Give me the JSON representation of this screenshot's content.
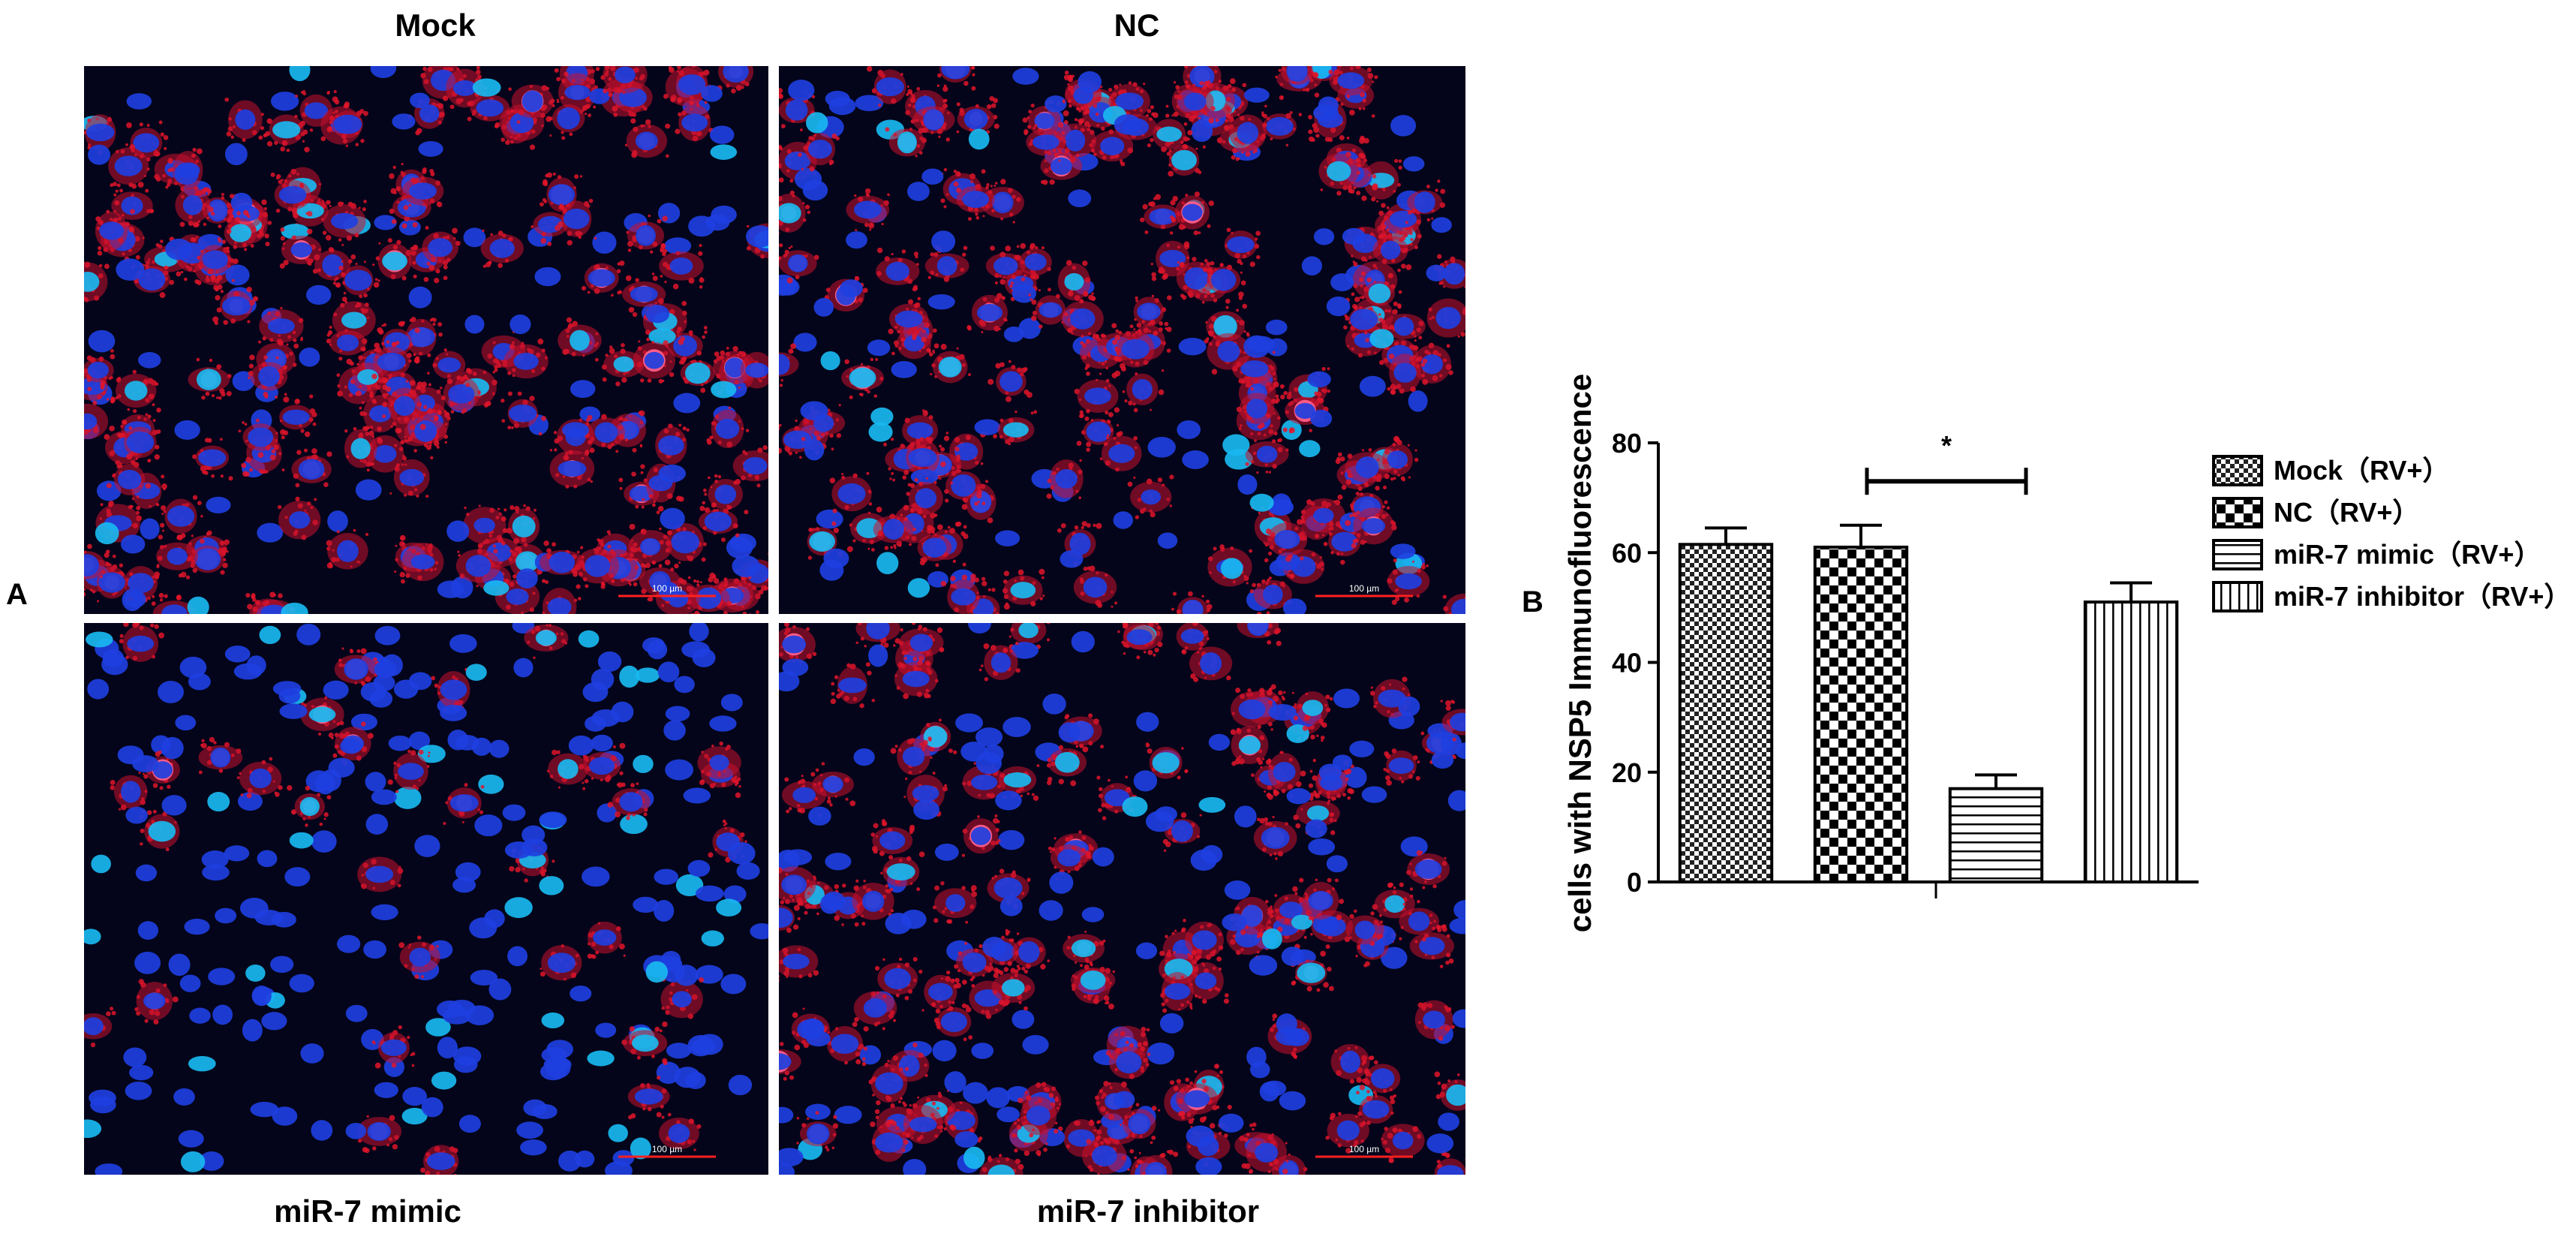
{
  "panels": {
    "a_label": "A",
    "b_label": "B",
    "image_titles": [
      "Mock",
      "NC",
      "miR-7 mimic",
      "miR-7 inhibitor"
    ],
    "scale_bar_text": "100 µm"
  },
  "chart_data": {
    "type": "bar",
    "categories": [
      "Mock（RV+）",
      "NC（RV+）",
      "miR-7 mimic（RV+）",
      "miR-7 inhibitor（RV+）"
    ],
    "series": [
      {
        "name": "",
        "values": [
          61.5,
          61,
          17,
          51
        ],
        "errors": [
          3,
          4,
          2.5,
          3.5
        ]
      }
    ],
    "ylabel": "cells with NSP5 Immunofluorescence",
    "xlabel": "",
    "ylim": [
      0,
      80
    ],
    "yticks": [
      0,
      20,
      40,
      60,
      80
    ],
    "significance": {
      "between": [
        "NC（RV+）",
        "miR-7 mimic（RV+）"
      ],
      "label": "*"
    },
    "legend": {
      "position": "right",
      "entries": [
        "Mock（RV+）",
        "NC（RV+）",
        "miR-7 mimic（RV+）",
        "miR-7 inhibitor（RV+）"
      ]
    },
    "patterns": [
      "fine-check",
      "checkerboard",
      "horizontal-lines",
      "vertical-lines"
    ],
    "colors": {
      "bar_stroke": "#000000",
      "bar_fill": "#ffffff"
    }
  }
}
